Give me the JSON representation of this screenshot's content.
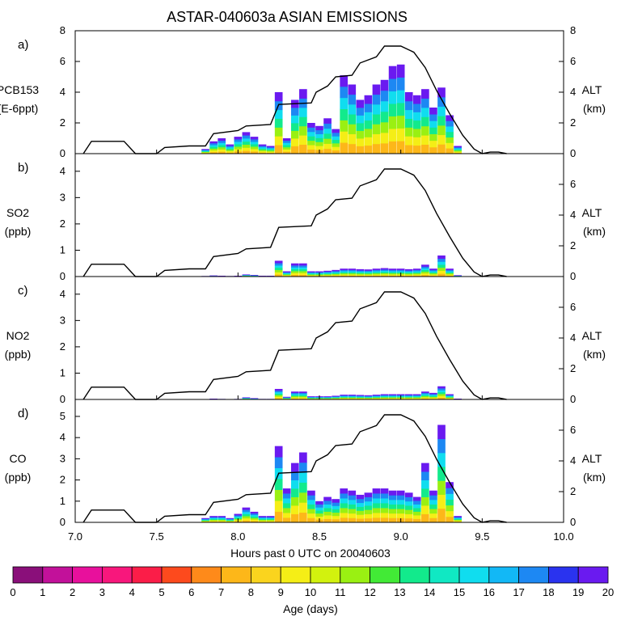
{
  "chart_data": {
    "type": "area",
    "title": "ASTAR-040603a ASIAN EMISSIONS",
    "xlabel": "Hours past 0 UTC on 20040603",
    "xlim": [
      7.0,
      10.0
    ],
    "xticks": [
      "7.0",
      "7.5",
      "8.0",
      "8.5",
      "9.0",
      "9.5",
      "10.0"
    ],
    "xtick_values": [
      7.0,
      7.5,
      8.0,
      8.5,
      9.0,
      9.5,
      10.0
    ],
    "right_axis": {
      "label": "ALT",
      "units": "(km)",
      "ylim": [
        0,
        8
      ]
    },
    "altitude_km": {
      "x": [
        7.05,
        7.1,
        7.3,
        7.37,
        7.5,
        7.55,
        7.7,
        7.8,
        7.85,
        8.0,
        8.05,
        8.2,
        8.25,
        8.45,
        8.48,
        8.55,
        8.6,
        8.7,
        8.75,
        8.85,
        8.9,
        9.0,
        9.08,
        9.15,
        9.22,
        9.3,
        9.38,
        9.45,
        9.5,
        9.55,
        9.6,
        9.65
      ],
      "y": [
        0.0,
        0.8,
        0.8,
        0.0,
        0.0,
        0.4,
        0.5,
        0.5,
        1.3,
        1.5,
        1.8,
        1.9,
        3.2,
        3.3,
        4.0,
        4.4,
        5.0,
        5.1,
        5.9,
        6.3,
        7.0,
        7.0,
        6.6,
        5.6,
        4.1,
        2.6,
        1.2,
        0.3,
        0.0,
        0.1,
        0.1,
        0.0
      ]
    },
    "age_colorbar": {
      "label": "Age (days)",
      "ticks": [
        "0",
        "1",
        "2",
        "3",
        "4",
        "5",
        "6",
        "7",
        "8",
        "9",
        "10",
        "11",
        "12",
        "13",
        "14",
        "15",
        "16",
        "17",
        "18",
        "19",
        "20"
      ],
      "colors": [
        "#8a0f7a",
        "#c2119a",
        "#e8109c",
        "#f8177c",
        "#fb1d48",
        "#fd4a1d",
        "#fe8a1a",
        "#fdb719",
        "#fad41e",
        "#f5ee16",
        "#d2f20e",
        "#9af012",
        "#42ea36",
        "#12ea8c",
        "#10e8c3",
        "#10ddef",
        "#12b8f6",
        "#1d88f3",
        "#2a33ef",
        "#6a1af0"
      ]
    },
    "panels": [
      {
        "letter": "a)",
        "name": "PCB153",
        "units": "(E-6ppt)",
        "ylim": [
          0,
          8
        ],
        "yticks": [
          "0",
          "2",
          "4",
          "6",
          "8"
        ],
        "series": {
          "x": [
            7.8,
            7.85,
            7.9,
            7.95,
            8.0,
            8.05,
            8.1,
            8.15,
            8.2,
            8.25,
            8.3,
            8.35,
            8.4,
            8.45,
            8.5,
            8.55,
            8.6,
            8.65,
            8.7,
            8.75,
            8.8,
            8.85,
            8.9,
            8.95,
            9.0,
            9.05,
            9.1,
            9.15,
            9.2,
            9.25,
            9.3,
            9.35
          ],
          "y": [
            0.3,
            0.8,
            1.0,
            0.6,
            1.1,
            1.4,
            1.1,
            0.6,
            0.5,
            4.0,
            1.0,
            3.5,
            4.2,
            2.0,
            1.8,
            2.3,
            1.6,
            5.1,
            4.5,
            3.5,
            3.8,
            4.5,
            4.8,
            5.7,
            5.8,
            4.0,
            3.8,
            4.2,
            3.0,
            4.3,
            2.5,
            0.5
          ]
        }
      },
      {
        "letter": "b)",
        "name": "SO2",
        "units": "(ppb)",
        "ylim": [
          0,
          4.67
        ],
        "yticks": [
          "0",
          "1",
          "2",
          "3",
          "4"
        ],
        "series": {
          "x": [
            7.8,
            7.85,
            7.9,
            7.95,
            8.0,
            8.05,
            8.1,
            8.15,
            8.2,
            8.25,
            8.3,
            8.35,
            8.4,
            8.45,
            8.5,
            8.55,
            8.6,
            8.65,
            8.7,
            8.75,
            8.8,
            8.85,
            8.9,
            8.95,
            9.0,
            9.05,
            9.1,
            9.15,
            9.2,
            9.25,
            9.3,
            9.35
          ],
          "y": [
            0.02,
            0.04,
            0.03,
            0.02,
            0.03,
            0.08,
            0.06,
            0.03,
            0.03,
            0.6,
            0.2,
            0.5,
            0.5,
            0.2,
            0.2,
            0.22,
            0.25,
            0.3,
            0.3,
            0.28,
            0.27,
            0.3,
            0.32,
            0.3,
            0.3,
            0.28,
            0.3,
            0.45,
            0.3,
            0.8,
            0.3,
            0.05
          ]
        }
      },
      {
        "letter": "c)",
        "name": "NO2",
        "units": "(ppb)",
        "ylim": [
          0,
          4.67
        ],
        "yticks": [
          "0",
          "1",
          "2",
          "3",
          "4"
        ],
        "series": {
          "x": [
            7.8,
            7.85,
            7.9,
            7.95,
            8.0,
            8.05,
            8.1,
            8.15,
            8.2,
            8.25,
            8.3,
            8.35,
            8.4,
            8.45,
            8.5,
            8.55,
            8.6,
            8.65,
            8.7,
            8.75,
            8.8,
            8.85,
            8.9,
            8.95,
            9.0,
            9.05,
            9.1,
            9.15,
            9.2,
            9.25,
            9.3,
            9.35
          ],
          "y": [
            0.01,
            0.03,
            0.02,
            0.01,
            0.02,
            0.08,
            0.05,
            0.02,
            0.02,
            0.4,
            0.1,
            0.3,
            0.3,
            0.12,
            0.12,
            0.12,
            0.14,
            0.18,
            0.18,
            0.17,
            0.16,
            0.18,
            0.2,
            0.2,
            0.2,
            0.2,
            0.2,
            0.3,
            0.25,
            0.5,
            0.2,
            0.03
          ]
        }
      },
      {
        "letter": "d)",
        "name": "CO",
        "units": "(ppb)",
        "ylim": [
          0,
          5.8
        ],
        "yticks": [
          "0",
          "1",
          "2",
          "3",
          "4",
          "5"
        ],
        "series": {
          "x": [
            7.8,
            7.85,
            7.9,
            7.95,
            8.0,
            8.05,
            8.1,
            8.15,
            8.2,
            8.25,
            8.3,
            8.35,
            8.4,
            8.45,
            8.5,
            8.55,
            8.6,
            8.65,
            8.7,
            8.75,
            8.8,
            8.85,
            8.9,
            8.95,
            9.0,
            9.05,
            9.1,
            9.15,
            9.2,
            9.25,
            9.3,
            9.35
          ],
          "y": [
            0.2,
            0.3,
            0.3,
            0.2,
            0.4,
            0.7,
            0.5,
            0.3,
            0.3,
            3.6,
            1.6,
            2.8,
            3.3,
            1.5,
            1.0,
            1.2,
            1.1,
            1.6,
            1.5,
            1.3,
            1.4,
            1.6,
            1.6,
            1.5,
            1.5,
            1.4,
            1.2,
            2.8,
            1.5,
            4.6,
            1.9,
            0.3
          ]
        }
      }
    ]
  }
}
